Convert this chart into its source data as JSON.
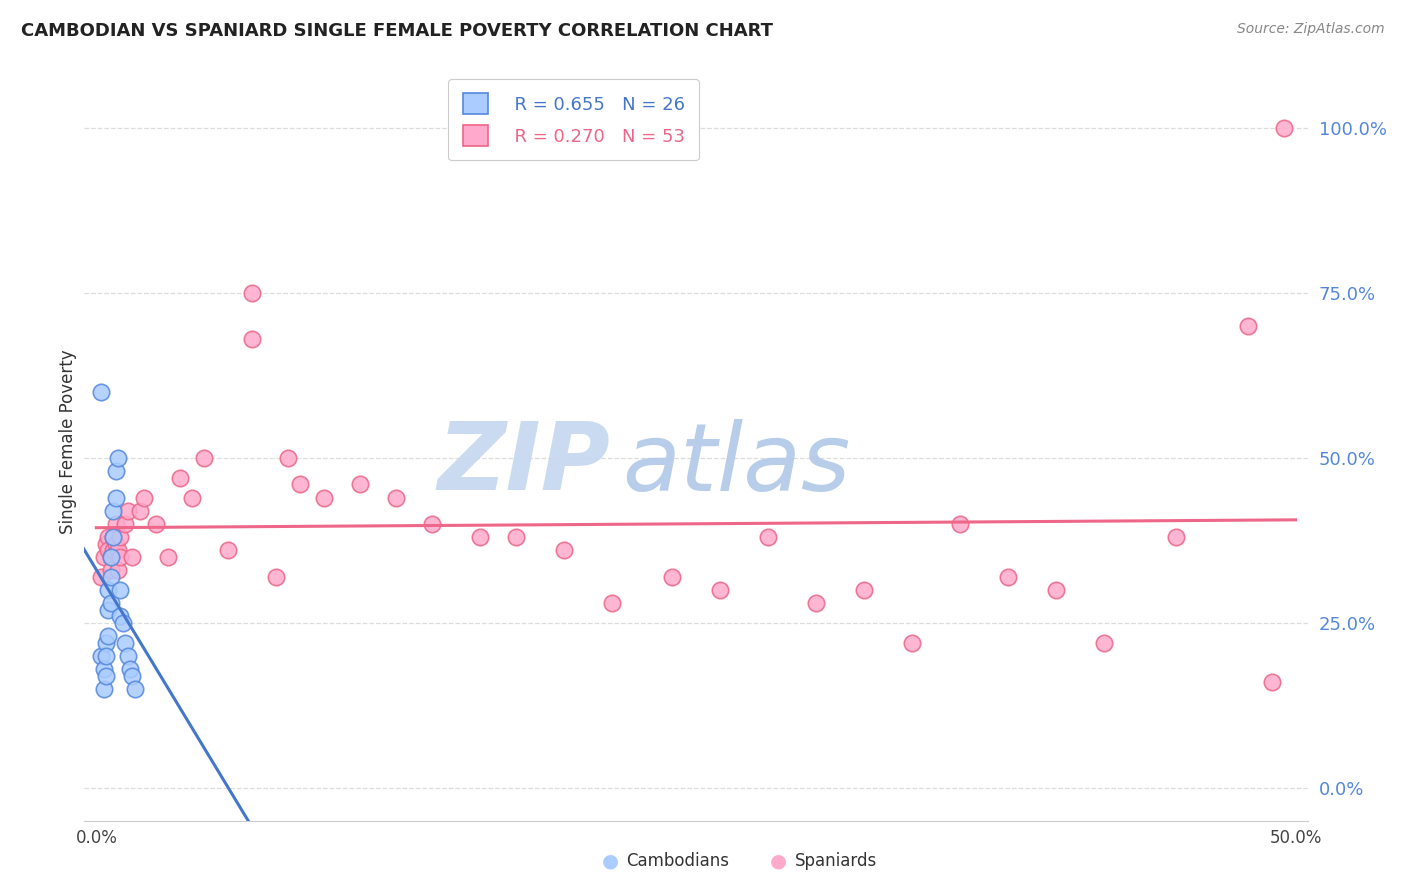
{
  "title": "CAMBODIAN VS SPANIARD SINGLE FEMALE POVERTY CORRELATION CHART",
  "source": "Source: ZipAtlas.com",
  "ylabel": "Single Female Poverty",
  "xlabel_cambodians": "Cambodians",
  "xlabel_spaniards": "Spaniards",
  "xlim": [
    -0.005,
    0.505
  ],
  "ylim": [
    -0.05,
    1.1
  ],
  "ytick_vals": [
    0.0,
    0.25,
    0.5,
    0.75,
    1.0
  ],
  "xtick_vals": [
    0.0,
    0.5
  ],
  "xtick_labels": [
    "0.0%",
    "50.0%"
  ],
  "cambodian_color": "#aaccff",
  "spaniard_color": "#ffaacc",
  "cambodian_edge_color": "#5588dd",
  "spaniard_edge_color": "#ee6688",
  "cambodian_line_color": "#4477cc",
  "spaniard_line_color": "#ee6688",
  "background_color": "#ffffff",
  "grid_color": "#dddddd",
  "ytick_color": "#5588dd",
  "watermark_zip_color": "#c5d8f0",
  "watermark_atlas_color": "#b0c8e8",
  "cambodian_x": [
    0.002,
    0.003,
    0.003,
    0.004,
    0.004,
    0.004,
    0.005,
    0.005,
    0.005,
    0.006,
    0.006,
    0.006,
    0.007,
    0.007,
    0.008,
    0.008,
    0.009,
    0.01,
    0.01,
    0.011,
    0.012,
    0.013,
    0.014,
    0.015,
    0.016,
    0.002
  ],
  "cambodian_y": [
    0.2,
    0.18,
    0.15,
    0.22,
    0.2,
    0.17,
    0.3,
    0.27,
    0.23,
    0.35,
    0.32,
    0.28,
    0.42,
    0.38,
    0.48,
    0.44,
    0.5,
    0.3,
    0.26,
    0.25,
    0.22,
    0.2,
    0.18,
    0.17,
    0.15,
    0.6
  ],
  "spaniard_x": [
    0.002,
    0.003,
    0.004,
    0.005,
    0.005,
    0.006,
    0.006,
    0.007,
    0.007,
    0.008,
    0.008,
    0.009,
    0.009,
    0.01,
    0.01,
    0.012,
    0.013,
    0.015,
    0.018,
    0.02,
    0.025,
    0.03,
    0.035,
    0.04,
    0.045,
    0.055,
    0.065,
    0.075,
    0.085,
    0.095,
    0.11,
    0.125,
    0.14,
    0.16,
    0.175,
    0.195,
    0.215,
    0.24,
    0.26,
    0.28,
    0.3,
    0.32,
    0.34,
    0.36,
    0.38,
    0.4,
    0.42,
    0.45,
    0.48,
    0.49,
    0.495,
    0.065,
    0.08
  ],
  "spaniard_y": [
    0.32,
    0.35,
    0.37,
    0.38,
    0.36,
    0.35,
    0.33,
    0.38,
    0.36,
    0.4,
    0.37,
    0.36,
    0.33,
    0.38,
    0.35,
    0.4,
    0.42,
    0.35,
    0.42,
    0.44,
    0.4,
    0.35,
    0.47,
    0.44,
    0.5,
    0.36,
    0.68,
    0.32,
    0.46,
    0.44,
    0.46,
    0.44,
    0.4,
    0.38,
    0.38,
    0.36,
    0.28,
    0.32,
    0.3,
    0.38,
    0.28,
    0.3,
    0.22,
    0.4,
    0.32,
    0.3,
    0.22,
    0.38,
    0.7,
    0.16,
    1.0,
    0.75,
    0.5
  ]
}
